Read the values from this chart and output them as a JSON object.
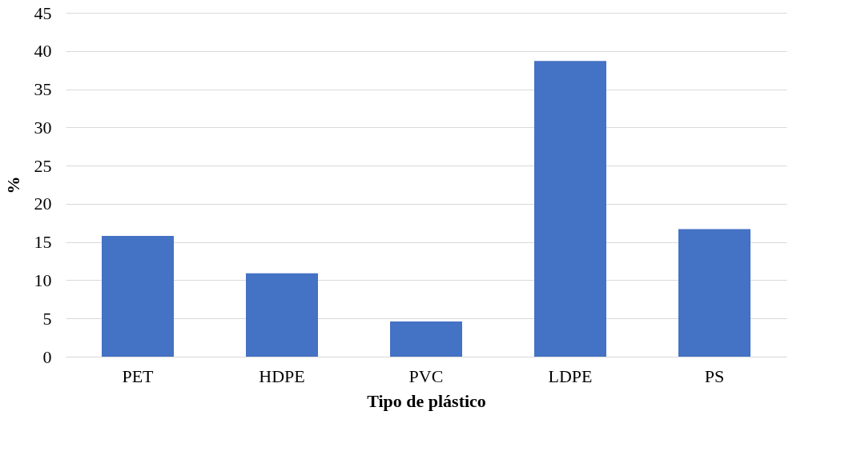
{
  "chart_data": {
    "type": "bar",
    "xlabel": "Tipo de plástico",
    "ylabel": "%",
    "categories": [
      "PET",
      "HDPE",
      "PVC",
      "LDPE",
      "PS"
    ],
    "series": [
      {
        "color": "#4472c4",
        "values": [
          15.8,
          10.9,
          4.6,
          38.7,
          16.7
        ]
      }
    ],
    "ylim": [
      0,
      45
    ],
    "yticks": [
      0,
      5,
      10,
      15,
      20,
      25,
      30,
      35,
      40,
      45
    ],
    "grid": "y",
    "legend": false
  }
}
